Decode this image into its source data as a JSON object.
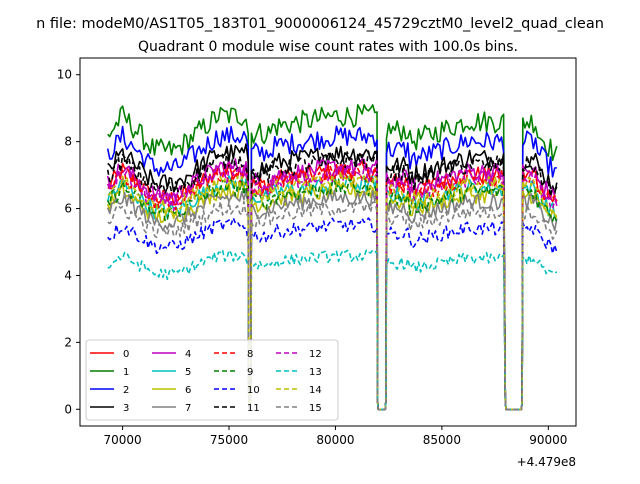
{
  "figure": {
    "supertitle": "n file: modeM0/AS1T05_183T01_9000006124_45729cztM0_level2_quad_clean",
    "title": "Quadrant 0 module wise count rates with 100.0s bins."
  },
  "chart_data": {
    "type": "line",
    "title": "Quadrant 0 module wise count rates with 100.0s bins.",
    "xlabel": "",
    "ylabel": "",
    "x_offset_label": "+4.479e8",
    "xlim": [
      68000,
      91300
    ],
    "ylim": [
      -0.5,
      10.5
    ],
    "x_ticks": [
      70000,
      75000,
      80000,
      85000,
      90000
    ],
    "y_ticks": [
      0,
      2,
      4,
      6,
      8,
      10
    ],
    "x_tick_labels": [
      "70000",
      "75000",
      "80000",
      "85000",
      "90000"
    ],
    "y_tick_labels": [
      "0",
      "2",
      "4",
      "6",
      "8",
      "10"
    ],
    "grid": false,
    "legend_placement": "lower-left",
    "segments": [
      [
        69300,
        75900
      ],
      [
        76050,
        81950
      ],
      [
        82400,
        87950
      ],
      [
        88800,
        90400
      ]
    ],
    "gaps": [
      [
        75900,
        76050
      ],
      [
        81950,
        82400
      ],
      [
        87950,
        88800
      ]
    ],
    "series": [
      {
        "name": "0",
        "color": "#ff0000",
        "style": "solid",
        "level": 7.0
      },
      {
        "name": "1",
        "color": "#008000",
        "style": "solid",
        "level": 8.6
      },
      {
        "name": "2",
        "color": "#0000ff",
        "style": "solid",
        "level": 8.0
      },
      {
        "name": "3",
        "color": "#000000",
        "style": "solid",
        "level": 7.5
      },
      {
        "name": "4",
        "color": "#bf00bf",
        "style": "solid",
        "level": 7.1
      },
      {
        "name": "5",
        "color": "#00bfbf",
        "style": "solid",
        "level": 6.6
      },
      {
        "name": "6",
        "color": "#bfbf00",
        "style": "solid",
        "level": 6.4
      },
      {
        "name": "7",
        "color": "#808080",
        "style": "solid",
        "level": 6.2
      },
      {
        "name": "8",
        "color": "#ff0000",
        "style": "dashed",
        "level": 6.9
      },
      {
        "name": "9",
        "color": "#008000",
        "style": "dashed",
        "level": 6.5
      },
      {
        "name": "10",
        "color": "#0000ff",
        "style": "dashed",
        "level": 5.4
      },
      {
        "name": "11",
        "color": "#000000",
        "style": "dashed",
        "level": 7.3
      },
      {
        "name": "12",
        "color": "#bf00bf",
        "style": "dashed",
        "level": 6.9
      },
      {
        "name": "13",
        "color": "#00bfbf",
        "style": "dashed",
        "level": 4.5
      },
      {
        "name": "14",
        "color": "#bfbf00",
        "style": "dashed",
        "level": 6.7
      },
      {
        "name": "15",
        "color": "#808080",
        "style": "dashed",
        "level": 5.9
      }
    ]
  }
}
